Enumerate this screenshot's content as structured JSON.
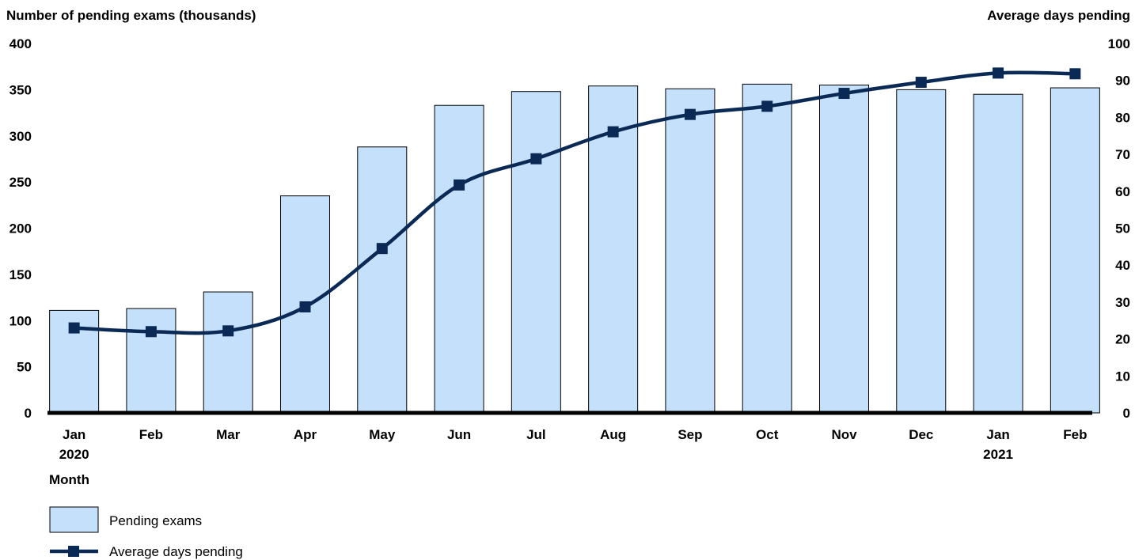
{
  "chart_data": {
    "type": "bar",
    "categories": [
      "Jan",
      "Feb",
      "Mar",
      "Apr",
      "May",
      "Jun",
      "Jul",
      "Aug",
      "Sep",
      "Oct",
      "Nov",
      "Dec",
      "Jan",
      "Feb"
    ],
    "category_years": [
      "2020",
      "",
      "",
      "",
      "",
      "",
      "",
      "",
      "",
      "",
      "",
      "",
      "2021",
      ""
    ],
    "series": [
      {
        "name": "Pending exams",
        "kind": "bar",
        "axis": "left",
        "color": "#c5e0fb",
        "values": [
          111,
          113,
          131,
          235,
          288,
          333,
          348,
          354,
          351,
          356,
          355,
          350,
          345,
          352
        ]
      },
      {
        "name": "Average days pending",
        "kind": "line",
        "axis": "right",
        "color": "#0a2a55",
        "values": [
          23,
          22,
          22.2,
          28.7,
          44.5,
          61.7,
          68.8,
          76.1,
          80.8,
          83,
          86.5,
          89.5,
          92,
          91.8
        ]
      }
    ],
    "ylabel": "Number of pending exams (thousands)",
    "y2label": "Average days pending",
    "xlabel": "Month",
    "ylim": [
      0,
      400
    ],
    "y2lim": [
      0,
      100
    ],
    "yticks": [
      0,
      50,
      100,
      150,
      200,
      250,
      300,
      350,
      400
    ],
    "y2ticks": [
      0,
      10,
      20,
      30,
      40,
      50,
      60,
      70,
      80,
      90,
      100
    ],
    "grid": false,
    "legend_position": "bottom-left"
  }
}
